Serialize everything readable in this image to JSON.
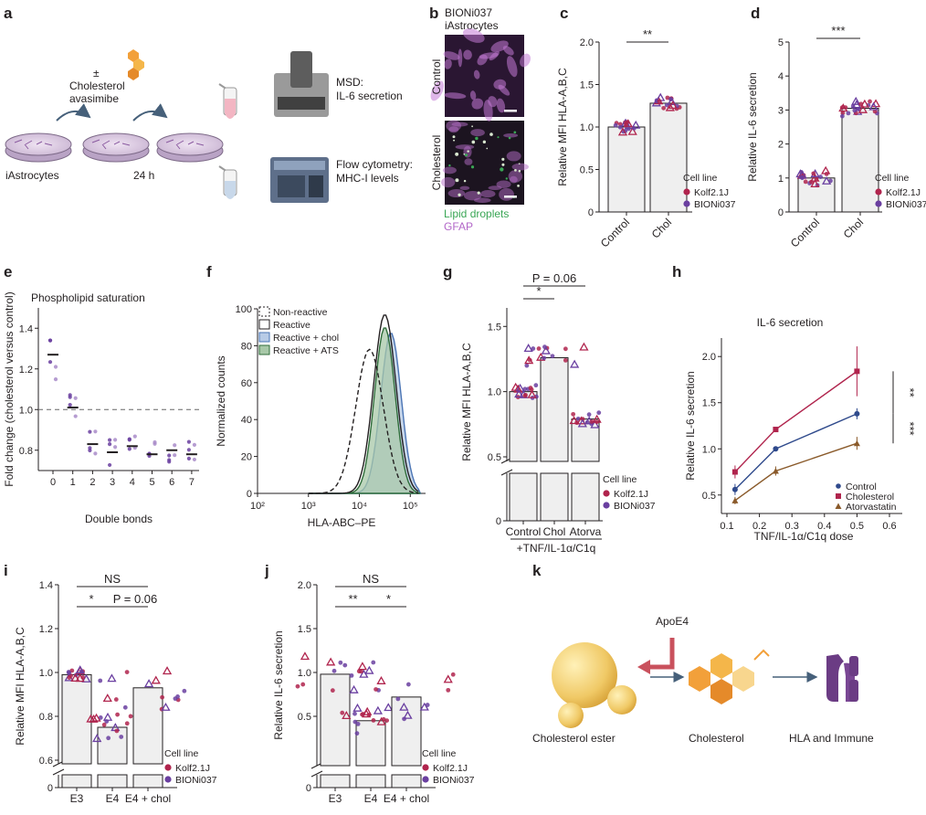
{
  "panel_labels": [
    "a",
    "b",
    "c",
    "d",
    "e",
    "f",
    "g",
    "h",
    "i",
    "j",
    "k"
  ],
  "panel_a": {
    "treatment": [
      "±",
      "Cholesterol",
      "avasimibe"
    ],
    "start_label": "iAstrocytes",
    "time_label": "24 h",
    "msd_label": [
      "MSD:",
      "IL-6 secretion"
    ],
    "flow_label": [
      "Flow cytometry:",
      "MHC-I levels"
    ]
  },
  "panel_b": {
    "title": [
      "BIONi037",
      "iAstrocytes"
    ],
    "row_labels": [
      "Control",
      "Cholesterol"
    ],
    "legend": [
      {
        "text": "Lipid droplets",
        "color": "#3aa655"
      },
      {
        "text": "GFAP",
        "color": "#b266c8"
      }
    ]
  },
  "cell_line_legend": {
    "title": "Cell line",
    "entries": [
      {
        "name": "Kolf2.1J",
        "color": "#b0244d"
      },
      {
        "name": "BIONi037",
        "color": "#6a3fa0"
      }
    ]
  },
  "chart_data": [
    {
      "panel": "c",
      "type": "bar",
      "categories": [
        "Control",
        "Chol"
      ],
      "values": [
        1.0,
        1.28
      ],
      "ylabel": "Relative MFI HLA-A,B,C",
      "ylim": [
        0,
        2.0
      ],
      "yticks": [
        "0",
        "0.5",
        "1.0",
        "1.5",
        "2.0"
      ],
      "significance": "**"
    },
    {
      "panel": "d",
      "type": "bar",
      "categories": [
        "Control",
        "Chol"
      ],
      "values": [
        1.0,
        3.05
      ],
      "ylabel": "Relative IL-6 secretion",
      "ylim": [
        0,
        5
      ],
      "yticks": [
        "0",
        "1",
        "2",
        "3",
        "4",
        "5"
      ],
      "significance": "***"
    },
    {
      "panel": "e",
      "type": "scatter",
      "title": "Phospholipid saturation",
      "xlabel": "Double bonds",
      "ylabel": "Fold change (cholesterol versus control)",
      "x": [
        0,
        1,
        2,
        3,
        4,
        5,
        6,
        7
      ],
      "means": [
        1.27,
        1.01,
        0.83,
        0.79,
        0.82,
        0.78,
        0.8,
        0.78
      ],
      "ylim": [
        0.7,
        1.5
      ],
      "yticks": [
        "0.8",
        "1.0",
        "1.2",
        "1.4"
      ],
      "reference_line": 1.0
    },
    {
      "panel": "f",
      "type": "line",
      "xlabel": "HLA-ABC–PE",
      "ylabel": "Normalized counts",
      "ylim": [
        0,
        100
      ],
      "yticks": [
        "0",
        "20",
        "40",
        "60",
        "80",
        "100"
      ],
      "xticks": [
        "10²",
        "10³",
        "10⁴",
        "10⁵"
      ],
      "series": [
        {
          "name": "Non-reactive"
        },
        {
          "name": "Reactive"
        },
        {
          "name": "Reactive + chol"
        },
        {
          "name": "Reactive + ATS"
        }
      ]
    },
    {
      "panel": "g",
      "type": "bar",
      "categories": [
        "Control",
        "Chol",
        "Atorva"
      ],
      "values": [
        1.0,
        1.26,
        0.79
      ],
      "ylabel": "Relative MFI HLA-A,B,C",
      "xlabel": "+TNF/IL-1α/C1q",
      "yticks": [
        "0",
        "0.5",
        "1.0",
        "1.5"
      ],
      "significance": [
        "*",
        "P = 0.06"
      ]
    },
    {
      "panel": "h",
      "type": "line",
      "title": "IL-6 secretion",
      "xlabel": "TNF/IL-1α/C1q dose",
      "ylabel": "Relative IL-6 secretion",
      "x": [
        0.125,
        0.25,
        0.5
      ],
      "xticks": [
        "0.1",
        "0.2",
        "0.3",
        "0.4",
        "0.5",
        "0.6"
      ],
      "yticks": [
        "0.5",
        "1.0",
        "1.5",
        "2.0"
      ],
      "series": [
        {
          "name": "Control",
          "values": [
            0.56,
            1.0,
            1.38
          ]
        },
        {
          "name": "Cholesterol",
          "values": [
            0.75,
            1.21,
            1.84
          ]
        },
        {
          "name": "Atorvastatin",
          "values": [
            0.44,
            0.76,
            1.06
          ]
        }
      ],
      "significance": [
        "**",
        "***"
      ]
    },
    {
      "panel": "i",
      "type": "bar",
      "categories": [
        "E3",
        "E4",
        "E4 + chol"
      ],
      "values": [
        0.99,
        0.75,
        0.93
      ],
      "ylabel": "Relative MFI HLA-A,B,C",
      "yticks": [
        "0",
        "0.6",
        "0.8",
        "1.0",
        "1.2",
        "1.4"
      ],
      "significance": [
        "NS",
        "*",
        "P = 0.06"
      ]
    },
    {
      "panel": "j",
      "type": "bar",
      "categories": [
        "E3",
        "E4",
        "E4 + chol"
      ],
      "values": [
        0.98,
        0.45,
        0.72
      ],
      "ylabel": "Relative IL-6 secretion",
      "yticks": [
        "0",
        "0.5",
        "1.0",
        "1.5",
        "2.0"
      ],
      "significance": [
        "NS",
        "**",
        "*"
      ]
    }
  ],
  "panel_k": {
    "apoe": "ApoE4",
    "labels": [
      "Cholesterol ester",
      "Cholesterol",
      "HLA and Immune"
    ]
  }
}
